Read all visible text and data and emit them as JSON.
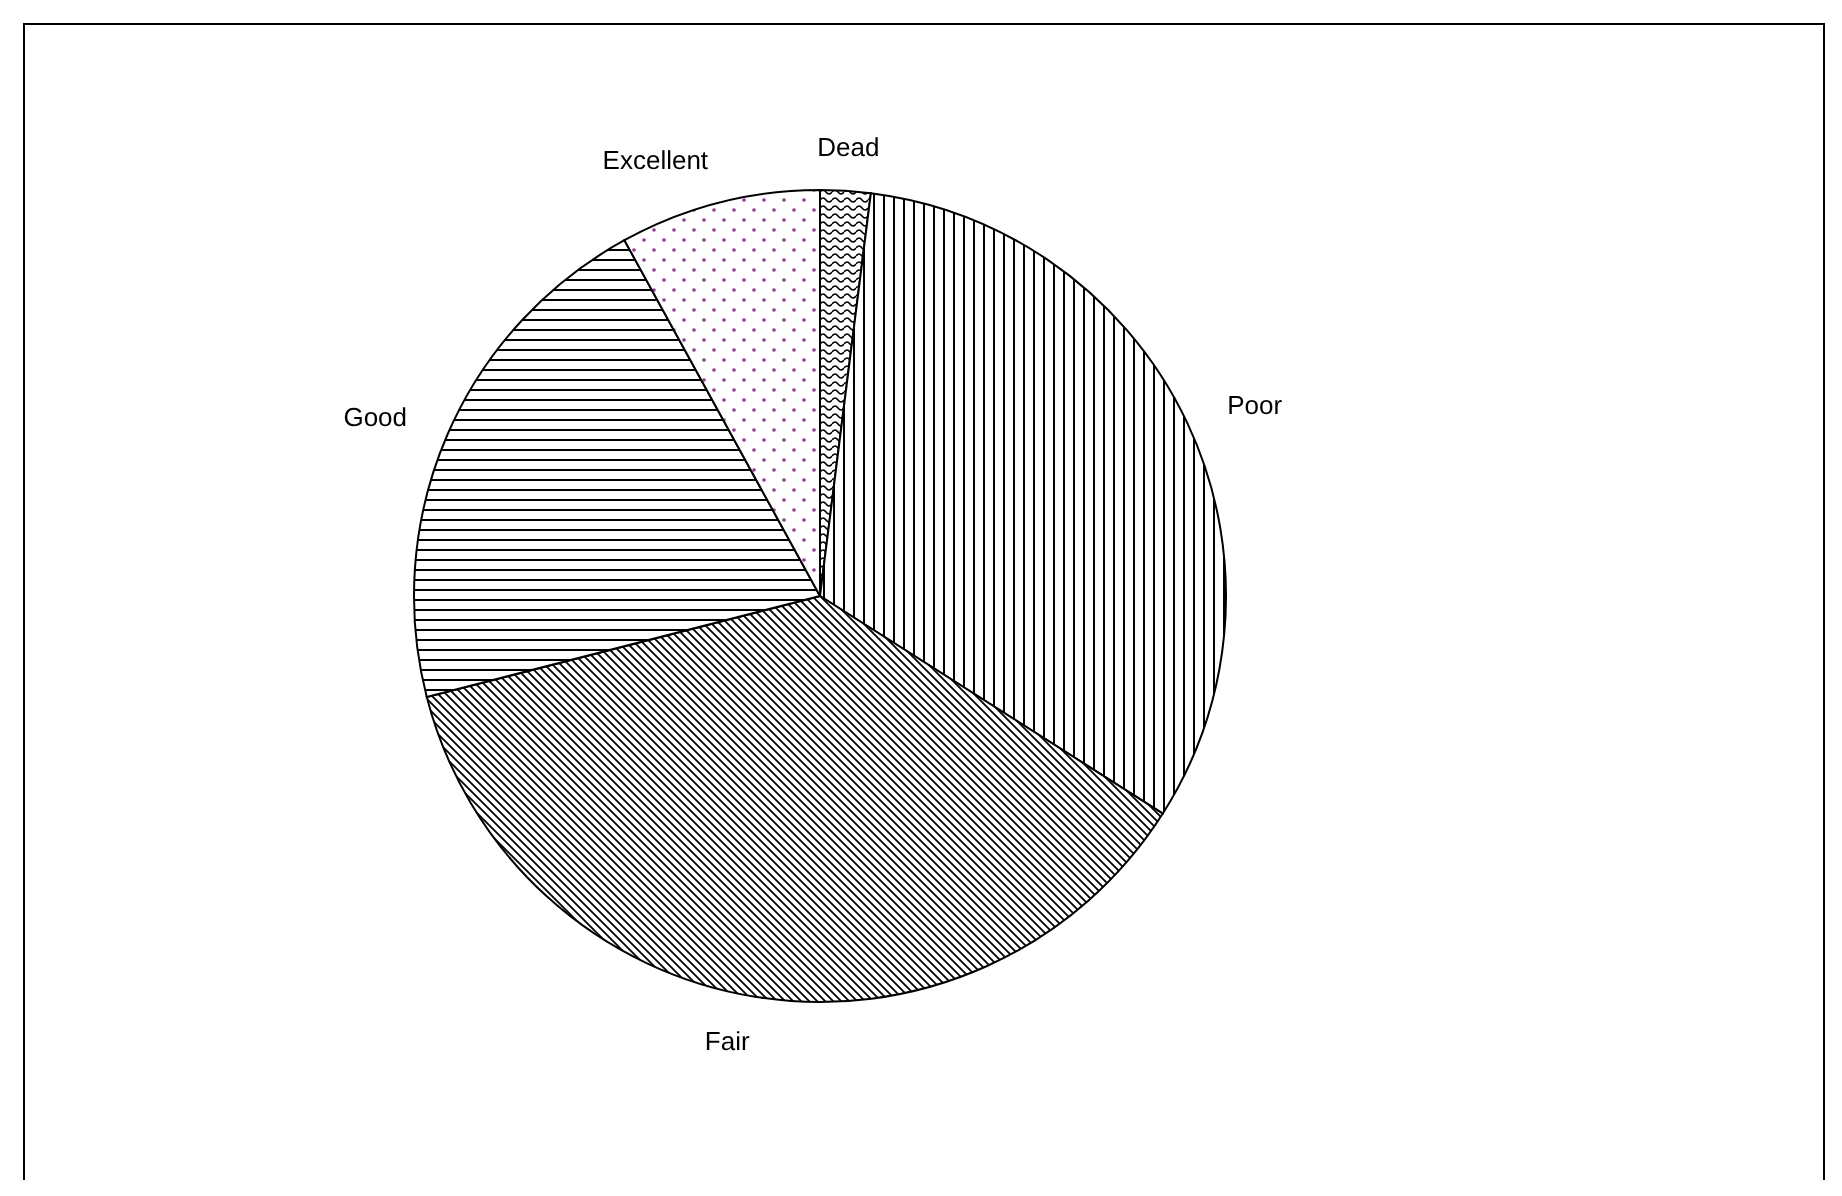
{
  "chart_data": {
    "type": "pie",
    "categories": [
      "Dead",
      "Poor",
      "Fair",
      "Good",
      "Excellent"
    ],
    "values": [
      2,
      32,
      37,
      21,
      8
    ]
  }
}
